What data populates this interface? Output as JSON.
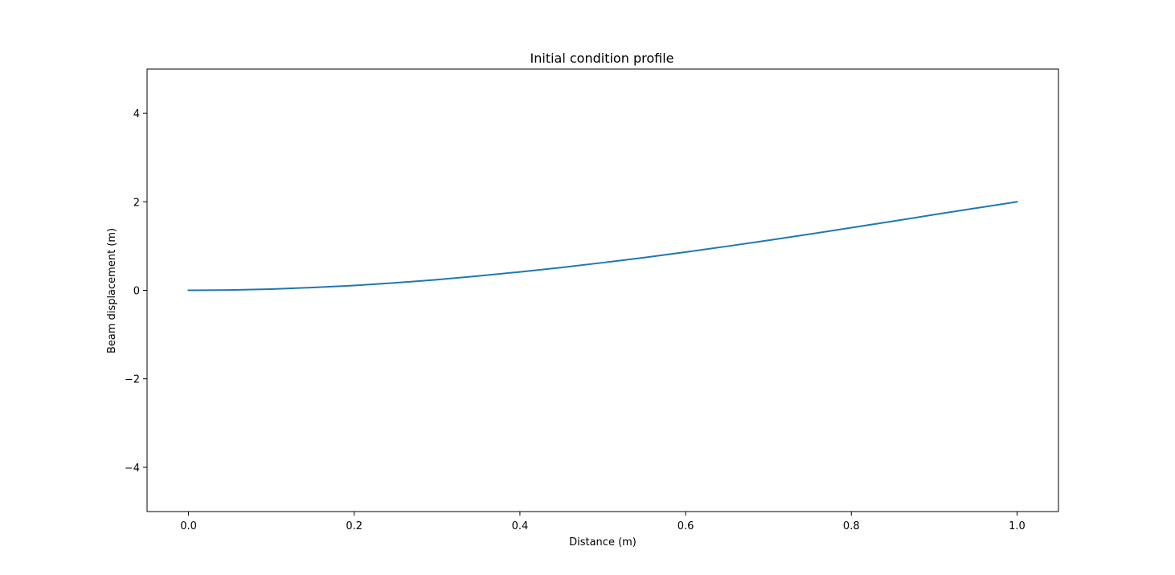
{
  "chart_data": {
    "type": "line",
    "title": "Initial condition profile",
    "xlabel": "Distance (m)",
    "ylabel": "Beam displacement (m)",
    "xlim": [
      -0.05,
      1.05
    ],
    "ylim": [
      -5,
      5
    ],
    "xticks": [
      0.0,
      0.2,
      0.4,
      0.6,
      0.8,
      1.0
    ],
    "xtick_labels": [
      "0.0",
      "0.2",
      "0.4",
      "0.6",
      "0.8",
      "1.0"
    ],
    "yticks": [
      -4,
      -2,
      0,
      2,
      4
    ],
    "ytick_labels": [
      "−4",
      "−2",
      "0",
      "2",
      "4"
    ],
    "grid": false,
    "series": [
      {
        "color": "#1f77b4",
        "x": [
          0.0,
          0.05,
          0.1,
          0.15,
          0.2,
          0.25,
          0.3,
          0.35,
          0.4,
          0.45,
          0.5,
          0.55,
          0.6,
          0.65,
          0.7,
          0.75,
          0.8,
          0.85,
          0.9,
          0.95,
          1.0
        ],
        "y": [
          0.0,
          0.007,
          0.028,
          0.063,
          0.11,
          0.17,
          0.24,
          0.325,
          0.415,
          0.515,
          0.625,
          0.74,
          0.865,
          0.995,
          1.13,
          1.27,
          1.415,
          1.56,
          1.71,
          1.855,
          2.0
        ]
      }
    ]
  }
}
